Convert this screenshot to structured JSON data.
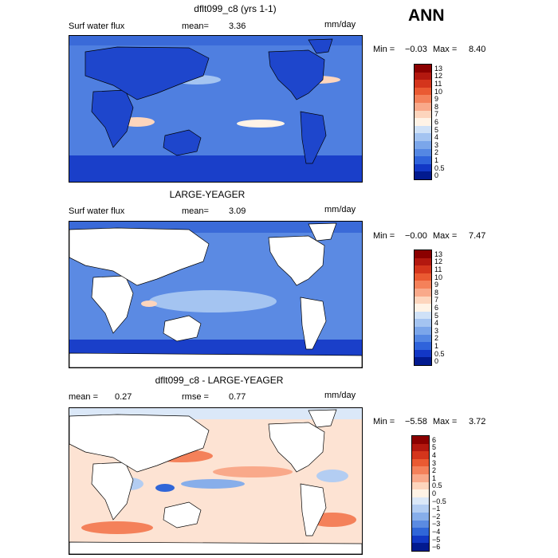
{
  "header": {
    "season": "ANN"
  },
  "panels": [
    {
      "title": "dflt099_c8 (yrs 1-1)",
      "left_label": "Surf water flux",
      "mean_label": "mean=",
      "mean_value": "3.36",
      "units": "mm/day",
      "min_text": "Min =",
      "min_value": "−0.03",
      "max_text": "Max =",
      "max_value": "8.40",
      "levels": [
        "13",
        "12",
        "11",
        "10",
        "9",
        "8",
        "7",
        "6",
        "5",
        "4",
        "3",
        "2",
        "1",
        "0.5",
        "0"
      ],
      "colors": [
        "#8b0000",
        "#b3180f",
        "#d4351c",
        "#ea5a32",
        "#f4815a",
        "#f9a98a",
        "#fdd5bd",
        "#fff3e6",
        "#cfe1f7",
        "#a4c4f1",
        "#7ba6ea",
        "#5487e3",
        "#2f63db",
        "#1237c6",
        "#021a8f"
      ],
      "ocean_color": "#4f7fe0",
      "land_color": "#1e46cc"
    },
    {
      "title": "LARGE-YEAGER",
      "left_label": "Surf water flux",
      "mean_label": "mean=",
      "mean_value": "3.09",
      "units": "mm/day",
      "min_text": "Min =",
      "min_value": "−0.00",
      "max_text": "Max =",
      "max_value": "7.47",
      "levels": [
        "13",
        "12",
        "11",
        "10",
        "9",
        "8",
        "7",
        "6",
        "5",
        "4",
        "3",
        "2",
        "1",
        "0.5",
        "0"
      ],
      "colors": [
        "#8b0000",
        "#b3180f",
        "#d4351c",
        "#ea5a32",
        "#f4815a",
        "#f9a98a",
        "#fdd5bd",
        "#fff3e6",
        "#cfe1f7",
        "#a4c4f1",
        "#7ba6ea",
        "#5487e3",
        "#2f63db",
        "#1237c6",
        "#021a8f"
      ],
      "ocean_color": "#5b8ae3",
      "land_color": "#ffffff"
    },
    {
      "title": "dflt099_c8 - LARGE-YEAGER",
      "left_label": "mean =",
      "left_value": "0.27",
      "mean_label": "rmse =",
      "mean_value": "0.77",
      "units": "mm/day",
      "min_text": "Min =",
      "min_value": "−5.58",
      "max_text": "Max =",
      "max_value": "3.72",
      "levels": [
        "6",
        "5",
        "4",
        "3",
        "2",
        "1",
        "0.5",
        "0",
        "−0.5",
        "−1",
        "−2",
        "−3",
        "−4",
        "−5",
        "−6"
      ],
      "colors": [
        "#8b0000",
        "#b3180f",
        "#d4351c",
        "#ea5a32",
        "#f4815a",
        "#f9a98a",
        "#fdd5bd",
        "#fff3e6",
        "#dbe8f8",
        "#b3cdf2",
        "#87aeea",
        "#5b8be2",
        "#3066d8",
        "#1238c4",
        "#021a8f"
      ],
      "ocean_color": "#fde3d3",
      "land_color": "#ffffff"
    }
  ]
}
